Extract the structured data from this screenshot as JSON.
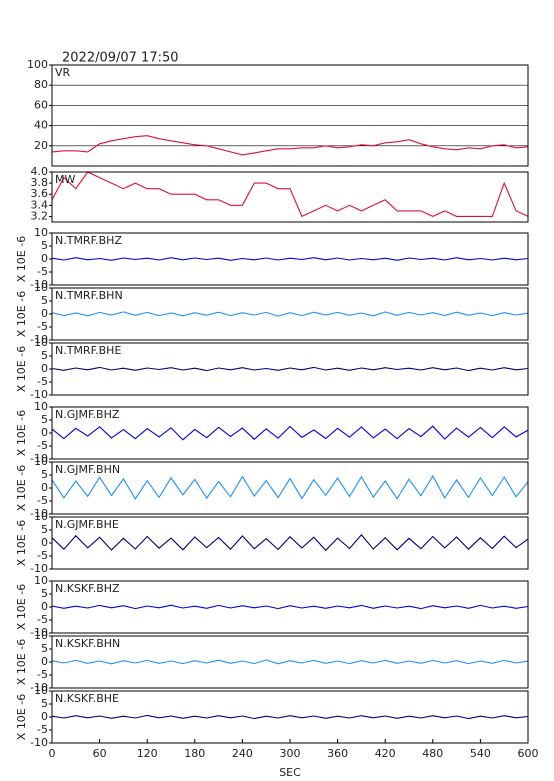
{
  "chart_data": {
    "type": "line",
    "title": "2022/09/07 17:50",
    "xlabel": "SEC",
    "x": [
      0,
      15,
      30,
      45,
      60,
      75,
      90,
      105,
      120,
      135,
      150,
      165,
      180,
      195,
      210,
      225,
      240,
      255,
      270,
      285,
      300,
      315,
      330,
      345,
      360,
      375,
      390,
      405,
      420,
      435,
      450,
      465,
      480,
      495,
      510,
      525,
      540,
      555,
      570,
      585,
      600
    ],
    "xlim": [
      0,
      600
    ],
    "xticks": [
      0,
      60,
      120,
      180,
      240,
      300,
      360,
      420,
      480,
      540,
      600
    ],
    "panels": [
      {
        "ylim": [
          0,
          100
        ],
        "yticks": [
          20,
          40,
          60,
          80,
          100
        ],
        "grid": true,
        "series": [
          {
            "name": "VR",
            "color": "#e0103a",
            "values": [
              14,
              15,
              15,
              14,
              22,
              25,
              27,
              29,
              30,
              27,
              25,
              23,
              21,
              20,
              17,
              14,
              11,
              13,
              15,
              17,
              17,
              18,
              18,
              20,
              18,
              19,
              21,
              20,
              23,
              24,
              26,
              22,
              19,
              17,
              16,
              18,
              17,
              20,
              21,
              18,
              19
            ]
          }
        ]
      },
      {
        "ylim": [
          3.1,
          4.0
        ],
        "yticks": [
          {
            "value": 4.0,
            "label": "4.0"
          },
          3.8,
          3.6,
          3.4,
          3.2
        ],
        "series": [
          {
            "name": "MW",
            "color": "#e0103a",
            "values": [
              3.5,
              3.9,
              3.7,
              4.0,
              3.9,
              3.8,
              3.7,
              3.8,
              3.7,
              3.7,
              3.6,
              3.6,
              3.6,
              3.5,
              3.5,
              3.4,
              3.4,
              3.8,
              3.8,
              3.7,
              3.7,
              3.2,
              3.3,
              3.4,
              3.3,
              3.4,
              3.3,
              3.4,
              3.5,
              3.3,
              3.3,
              3.3,
              3.2,
              3.3,
              3.2,
              3.2,
              3.2,
              3.2,
              3.8,
              3.3,
              3.2
            ]
          }
        ]
      },
      {
        "ylim": [
          -10,
          10
        ],
        "yticks": [
          10,
          5,
          0,
          -5,
          -10
        ],
        "ylabel": "X 10E -6",
        "series": [
          {
            "name": "N.TMRF.BHZ",
            "color": "#0000e6",
            "values": [
              0.3,
              -0.4,
              0.5,
              -0.3,
              0.2,
              -0.5,
              0.4,
              -0.2,
              0.3,
              -0.4,
              0.5,
              -0.3,
              0.4,
              -0.2,
              0.3,
              -0.5,
              0.2,
              -0.3,
              0.4,
              -0.4,
              0.3,
              -0.2,
              0.5,
              -0.3,
              0.4,
              -0.4,
              0.2,
              -0.3,
              0.3,
              -0.5,
              0.4,
              -0.2,
              0.3,
              -0.4,
              0.5,
              -0.3,
              0.2,
              -0.4,
              0.3,
              -0.3,
              0.2
            ]
          }
        ]
      },
      {
        "ylim": [
          -10,
          10
        ],
        "yticks": [
          10,
          5,
          0,
          -5,
          -10
        ],
        "ylabel": "X 10E -6",
        "series": [
          {
            "name": "N.TMRF.BHN",
            "color": "#1e90ff",
            "values": [
              0.5,
              -0.6,
              0.4,
              -0.7,
              0.6,
              -0.4,
              0.8,
              -0.5,
              0.6,
              -0.6,
              0.4,
              -0.7,
              0.5,
              -0.5,
              0.7,
              -0.6,
              0.5,
              -0.4,
              0.6,
              -0.8,
              0.5,
              -0.6,
              0.7,
              -0.4,
              0.6,
              -0.5,
              0.4,
              -0.7,
              0.8,
              -0.5,
              0.6,
              -0.4,
              0.5,
              -0.6,
              0.7,
              -0.5,
              0.4,
              -0.6,
              0.5,
              -0.4,
              0.3
            ]
          }
        ]
      },
      {
        "ylim": [
          -10,
          10
        ],
        "yticks": [
          10,
          5,
          0,
          -5,
          -10
        ],
        "ylabel": "X 10E -6",
        "series": [
          {
            "name": "N.TMRF.BHE",
            "color": "#000080",
            "values": [
              0.2,
              -0.5,
              0.4,
              -0.3,
              0.6,
              -0.4,
              0.3,
              -0.5,
              0.4,
              -0.2,
              0.5,
              -0.4,
              0.3,
              -0.6,
              0.4,
              -0.3,
              0.5,
              -0.4,
              0.2,
              -0.5,
              0.4,
              -0.3,
              0.6,
              -0.4,
              0.3,
              -0.5,
              0.4,
              -0.3,
              0.5,
              -0.2,
              0.3,
              -0.4,
              0.5,
              -0.3,
              0.4,
              -0.6,
              0.3,
              -0.4,
              0.5,
              -0.3,
              0.2
            ]
          }
        ]
      },
      {
        "ylim": [
          -10,
          10
        ],
        "yticks": [
          10,
          5,
          0,
          -5,
          -10
        ],
        "ylabel": "X 10E -6",
        "series": [
          {
            "name": "N.GJMF.BHZ",
            "color": "#0000e6",
            "values": [
              1.5,
              -2.1,
              1.8,
              -1.2,
              2.4,
              -1.9,
              1.3,
              -2.2,
              1.7,
              -1.5,
              2.0,
              -2.6,
              1.4,
              -1.8,
              2.2,
              -1.3,
              1.9,
              -2.4,
              1.6,
              -2.0,
              2.5,
              -1.7,
              1.2,
              -2.1,
              1.8,
              -1.6,
              2.3,
              -1.9,
              1.5,
              -2.2,
              1.7,
              -1.4,
              2.6,
              -2.3,
              1.9,
              -1.6,
              2.1,
              -1.8,
              2.4,
              -1.5,
              1.1
            ]
          }
        ]
      },
      {
        "ylim": [
          -10,
          10
        ],
        "yticks": [
          10,
          5,
          0,
          -5,
          -10
        ],
        "ylabel": "X 10E -6",
        "series": [
          {
            "name": "N.GJMF.BHN",
            "color": "#1e90ff",
            "values": [
              3.1,
              -3.8,
              2.7,
              -3.2,
              4.1,
              -2.9,
              3.5,
              -4.2,
              2.8,
              -3.6,
              3.9,
              -2.6,
              3.3,
              -3.9,
              2.5,
              -3.4,
              4.4,
              -3.1,
              2.9,
              -3.7,
              3.6,
              -4.0,
              3.2,
              -2.8,
              3.8,
              -3.3,
              4.3,
              -3.5,
              2.7,
              -4.1,
              3.4,
              -3.0,
              4.6,
              -3.8,
              3.1,
              -3.6,
              3.9,
              -2.9,
              4.2,
              -3.4,
              2.4
            ]
          }
        ]
      },
      {
        "ylim": [
          -10,
          10
        ],
        "yticks": [
          10,
          5,
          0,
          -5,
          -10
        ],
        "ylabel": "X 10E -6",
        "series": [
          {
            "name": "N.GJMF.BHE",
            "color": "#000080",
            "values": [
              2.0,
              -2.4,
              2.8,
              -1.9,
              2.2,
              -2.7,
              1.8,
              -2.3,
              2.5,
              -2.0,
              1.9,
              -2.6,
              2.3,
              -1.8,
              2.1,
              -2.4,
              2.7,
              -2.2,
              1.7,
              -2.5,
              2.4,
              -1.9,
              2.2,
              -2.8,
              1.9,
              -2.1,
              3.1,
              -2.3,
              2.0,
              -2.6,
              1.8,
              -2.2,
              2.5,
              -1.9,
              2.3,
              -2.4,
              2.0,
              -2.1,
              2.6,
              -1.8,
              1.5
            ]
          }
        ]
      },
      {
        "ylim": [
          -10,
          10
        ],
        "yticks": [
          10,
          5,
          0,
          -5,
          -10
        ],
        "ylabel": "X 10E -6",
        "series": [
          {
            "name": "N.KSKF.BHZ",
            "color": "#0000e6",
            "values": [
              0.4,
              -0.5,
              0.3,
              -0.4,
              0.6,
              -0.3,
              0.5,
              -0.6,
              0.4,
              -0.3,
              0.7,
              -0.4,
              0.3,
              -0.5,
              0.6,
              -0.4,
              0.5,
              -0.3,
              0.4,
              -0.6,
              0.5,
              -0.4,
              0.3,
              -0.5,
              0.4,
              -0.3,
              0.6,
              -0.5,
              0.4,
              -0.4,
              0.3,
              -0.6,
              0.5,
              -0.3,
              0.4,
              -0.5,
              0.6,
              -0.4,
              0.3,
              -0.5,
              0.2
            ]
          }
        ]
      },
      {
        "ylim": [
          -10,
          10
        ],
        "yticks": [
          10,
          5,
          0,
          -5,
          -10
        ],
        "ylabel": "X 10E -6",
        "series": [
          {
            "name": "N.KSKF.BHN",
            "color": "#1e90ff",
            "values": [
              0.5,
              -0.4,
              0.6,
              -0.5,
              0.4,
              -0.7,
              0.5,
              -0.4,
              0.6,
              -0.5,
              0.4,
              -0.6,
              0.5,
              -0.4,
              0.7,
              -0.5,
              0.4,
              -0.6,
              0.8,
              -0.7,
              0.5,
              -0.4,
              0.6,
              -0.5,
              0.4,
              -0.6,
              0.5,
              -0.4,
              0.6,
              -0.5,
              0.4,
              -0.5,
              0.6,
              -0.4,
              0.5,
              -0.6,
              0.4,
              -0.5,
              0.6,
              -0.4,
              0.3
            ]
          }
        ]
      },
      {
        "ylim": [
          -10,
          10
        ],
        "yticks": [
          10,
          5,
          0,
          -5,
          -10
        ],
        "ylabel": "X 10E -6",
        "series": [
          {
            "name": "N.KSKF.BHE",
            "color": "#000080",
            "values": [
              0.3,
              -0.4,
              0.5,
              -0.3,
              0.4,
              -0.5,
              0.3,
              -0.4,
              0.6,
              -0.3,
              0.4,
              -0.5,
              0.3,
              -0.4,
              0.5,
              -0.3,
              0.4,
              -0.6,
              0.3,
              -0.4,
              0.5,
              -0.3,
              0.4,
              -0.5,
              0.3,
              -0.4,
              0.5,
              -0.3,
              0.4,
              -0.5,
              0.3,
              -0.4,
              0.5,
              -0.3,
              0.4,
              -0.6,
              0.3,
              -0.4,
              0.5,
              -0.3,
              0.2
            ]
          }
        ]
      }
    ]
  }
}
